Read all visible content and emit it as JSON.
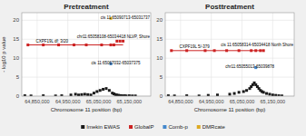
{
  "chart_data": [
    {
      "type": "scatter",
      "title": "Pretreatment",
      "xlabel": "Chromosome 11 position (bp)",
      "ylabel": "- log10 p value",
      "xlim": [
        64800000,
        65220000
      ],
      "ylim": [
        0,
        22
      ],
      "yticks": [
        0,
        5,
        10,
        15,
        20
      ],
      "xticks": [
        {
          "value": 64850000,
          "label": "64,850,000"
        },
        {
          "value": 64950000,
          "label": "64,950,000"
        },
        {
          "value": 65050000,
          "label": "65,050,000"
        },
        {
          "value": 65150000,
          "label": "65,150,000"
        }
      ],
      "grid": true,
      "legend": "lower center",
      "series": [
        {
          "name": "Imekin EWAS",
          "type": "scatter",
          "marker": "square",
          "color": "#1a1a1a",
          "x": [
            64810000,
            64830000,
            64870000,
            64910000,
            64930000,
            64960000,
            64975000,
            64985000,
            64995000,
            65005000,
            65015000,
            65025000,
            65035000,
            65045000,
            65055000,
            65065000,
            65075000,
            65085000,
            65095000,
            65100000,
            65105000,
            65110000,
            65115000,
            65120000,
            65125000,
            65130000,
            65135000,
            65140000,
            65150000,
            65160000,
            65170000
          ],
          "values": [
            0.1,
            0.05,
            0.1,
            0.05,
            0.1,
            0.3,
            0.5,
            0.3,
            0.4,
            0.5,
            0.4,
            0.3,
            0.8,
            1.2,
            1.5,
            1.8,
            2.0,
            1.5,
            0.8,
            0.6,
            0.4,
            0.3,
            0.2,
            0.15,
            0.1,
            0.05,
            0.1,
            0.05,
            0.1,
            0.05,
            0.05
          ]
        },
        {
          "type": "line",
          "color": "#cc2222",
          "x": [
            64820000,
            65130000
          ],
          "values": [
            13.5,
            13.5
          ]
        },
        {
          "name": "GlobalP",
          "type": "scatter",
          "marker": "square",
          "color": "#cc2222",
          "x": [
            64820000,
            64870000,
            64920000,
            64970000,
            65010000,
            65060000,
            65090000,
            65100000,
            65110000,
            65120000,
            65130000
          ],
          "values": [
            13.5,
            13.5,
            13.5,
            13.5,
            13.5,
            13.5,
            13.5,
            13.5,
            14.5,
            14.5,
            14.5
          ]
        },
        {
          "name": "Comb-p",
          "type": "scatter",
          "marker": "square",
          "color": "#4488cc",
          "x": [
            65090000
          ],
          "values": [
            8.5
          ]
        },
        {
          "name": "DMRcate",
          "type": "scatter",
          "marker": "square",
          "color": "#ddaa22",
          "x": [
            65090000
          ],
          "values": [
            20.5
          ]
        }
      ],
      "annotations": [
        {
          "text": "cis 11:65090713-65031737",
          "x": 65060000,
          "y": 20.2
        },
        {
          "text": "chr11:65058108-65034418 NLVP, Shore",
          "x": 65010000,
          "y": 15.0
        },
        {
          "text": "CXPF19L df: 3/20",
          "x": 64840000,
          "y": 13.8
        },
        {
          "text": "cis 11:65067032-65037375",
          "x": 65020000,
          "y": 8.2
        }
      ]
    },
    {
      "type": "scatter",
      "title": "Posttreatment",
      "xlabel": "Chromosome 11 position (bp)",
      "xlim": [
        64800000,
        65220000
      ],
      "ylim": [
        0,
        22
      ],
      "yticks": [
        0,
        5,
        10,
        15,
        20
      ],
      "xticks": [
        {
          "value": 64850000,
          "label": "64,850,000"
        },
        {
          "value": 64950000,
          "label": "64,950,000"
        },
        {
          "value": 65050000,
          "label": "65,050,000"
        },
        {
          "value": 65150000,
          "label": "65,150,000"
        }
      ],
      "grid": true,
      "legend": "lower center",
      "series": [
        {
          "name": "Imekin EWAS",
          "type": "scatter",
          "marker": "square",
          "color": "#1a1a1a",
          "x": [
            64810000,
            64830000,
            64870000,
            64910000,
            64940000,
            64970000,
            65010000,
            65025000,
            65040000,
            65055000,
            65065000,
            65075000,
            65080000,
            65085000,
            65090000,
            65095000,
            65100000,
            65105000,
            65110000,
            65115000,
            65120000,
            65130000,
            65140000,
            65150000,
            65160000,
            65170000,
            65180000
          ],
          "values": [
            0.1,
            0.05,
            0.1,
            0.05,
            0.2,
            0.3,
            0.5,
            0.7,
            1.0,
            1.2,
            1.5,
            2.0,
            2.5,
            3.0,
            3.5,
            3.0,
            2.5,
            2.0,
            1.5,
            1.2,
            1.0,
            0.7,
            0.5,
            0.3,
            0.2,
            0.1,
            0.05
          ]
        },
        {
          "type": "line",
          "color": "#cc2222",
          "x": [
            64820000,
            65120000
          ],
          "values": [
            12.0,
            12.0
          ]
        },
        {
          "name": "GlobalP",
          "type": "scatter",
          "marker": "square",
          "color": "#cc2222",
          "x": [
            64820000,
            64870000,
            64930000,
            64960000,
            65000000,
            65040000,
            65080000,
            65095000,
            65110000,
            65120000
          ],
          "values": [
            12.0,
            12.0,
            12.0,
            12.0,
            12.0,
            12.0,
            12.0,
            12.0,
            12.0,
            12.0
          ]
        },
        {
          "name": "Comb-p",
          "type": "scatter",
          "marker": "square",
          "color": "#4488cc",
          "x": [
            65095000
          ],
          "values": [
            7.5
          ]
        }
      ],
      "annotations": [
        {
          "text": "cis 11:65058314-65034418 North Shore",
          "x": 65020000,
          "y": 13.0
        },
        {
          "text": "CXPF19L 5/-379",
          "x": 64840000,
          "y": 12.5
        },
        {
          "text": "chr11:65055013-65039878",
          "x": 64990000,
          "y": 7.2
        }
      ]
    }
  ]
}
